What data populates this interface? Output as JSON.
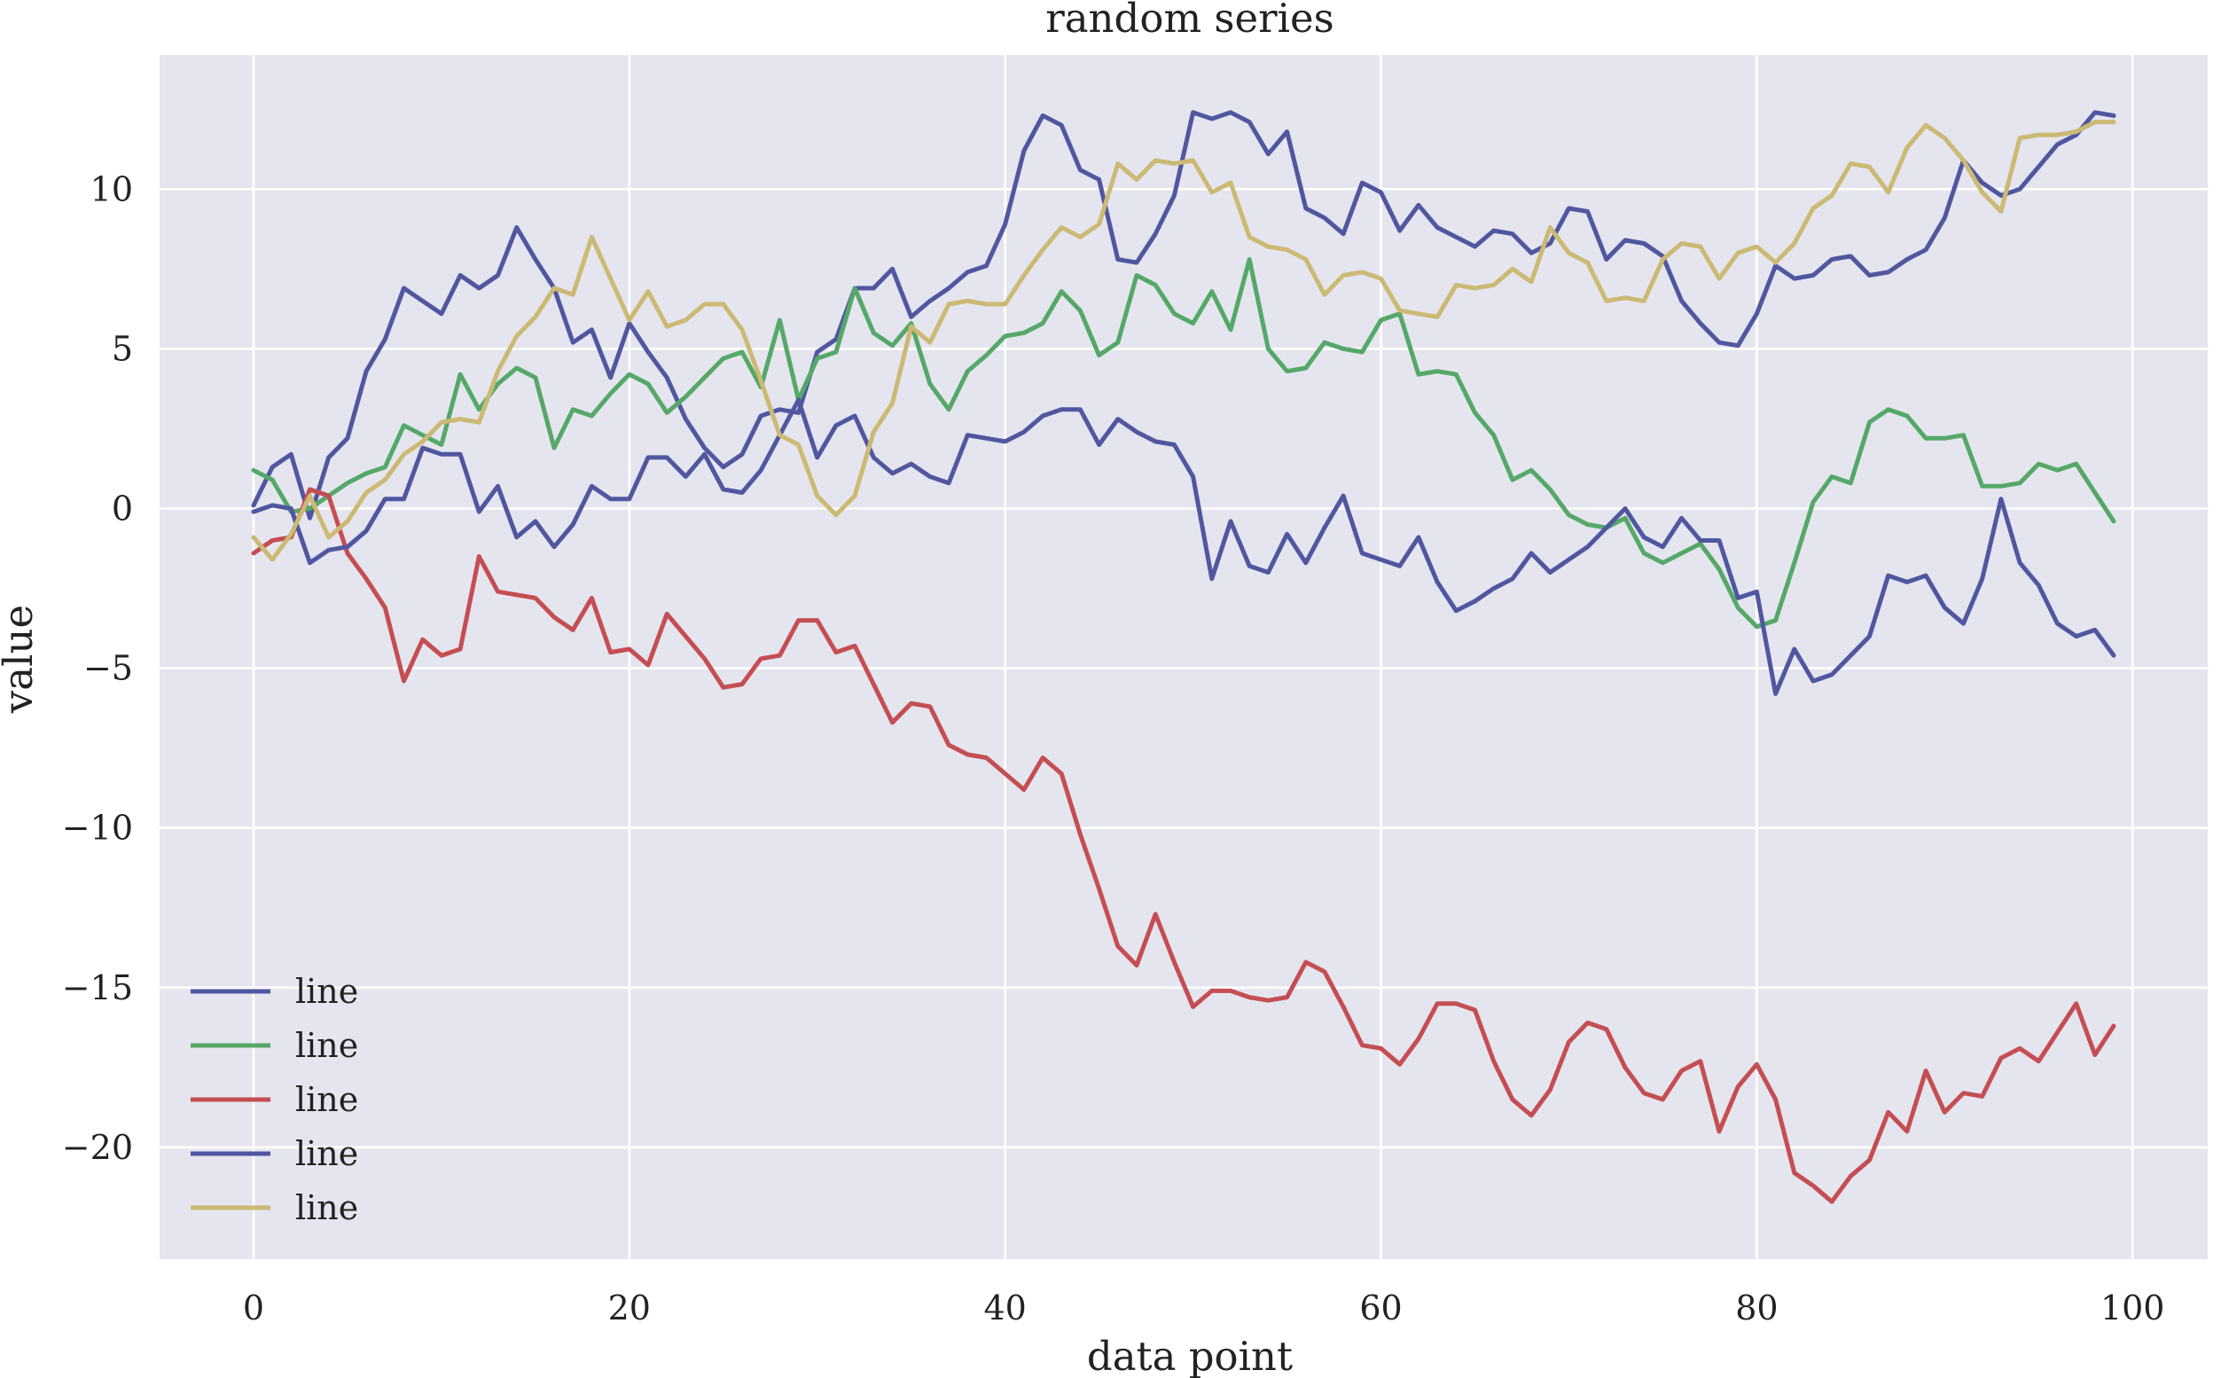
{
  "chart_data": {
    "type": "line",
    "title": "random series",
    "xlabel": "data point",
    "ylabel": "value",
    "xlim": [
      -5,
      104
    ],
    "ylim": [
      -23.5,
      14.2
    ],
    "xticks": [
      0,
      20,
      40,
      60,
      80,
      100
    ],
    "xtick_labels": [
      "0",
      "20",
      "40",
      "60",
      "80",
      "100"
    ],
    "yticks": [
      10,
      5,
      0,
      -5,
      -10,
      -15,
      -20
    ],
    "ytick_labels": [
      "10",
      "5",
      "0",
      "−5",
      "−10",
      "−15",
      "−20"
    ],
    "grid": true,
    "legend_position": "lower-left",
    "background": "#e5e5ef",
    "grid_color": "#ffffff",
    "series": [
      {
        "name": "line",
        "color": "#5057a0",
        "x": [
          0,
          1,
          2,
          3,
          4,
          5,
          6,
          7,
          8,
          9,
          10,
          11,
          12,
          13,
          14,
          15,
          16,
          17,
          18,
          19,
          20,
          21,
          22,
          23,
          24,
          25,
          26,
          27,
          28,
          29,
          30,
          31,
          32,
          33,
          34,
          35,
          36,
          37,
          38,
          39,
          40,
          41,
          42,
          43,
          44,
          45,
          46,
          47,
          48,
          49,
          50,
          51,
          52,
          53,
          54,
          55,
          56,
          57,
          58,
          59,
          60,
          61,
          62,
          63,
          64,
          65,
          66,
          67,
          68,
          69,
          70,
          71,
          72,
          73,
          74,
          75,
          76,
          77,
          78,
          79,
          80,
          81,
          82,
          83,
          84,
          85,
          86,
          87,
          88,
          89,
          90,
          91,
          92,
          93,
          94,
          95,
          96,
          97,
          98,
          99
        ],
        "values": [
          0.1,
          1.3,
          1.7,
          -0.3,
          1.6,
          2.2,
          4.3,
          5.3,
          6.9,
          6.5,
          6.1,
          7.3,
          6.9,
          7.3,
          8.8,
          7.8,
          6.9,
          5.2,
          5.6,
          4.1,
          5.8,
          4.9,
          4.1,
          2.8,
          1.9,
          1.3,
          1.7,
          2.9,
          3.1,
          3.0,
          4.9,
          5.3,
          6.9,
          6.9,
          7.5,
          6.0,
          6.5,
          6.9,
          7.4,
          7.6,
          8.9,
          11.2,
          12.3,
          12.0,
          10.6,
          10.3,
          7.8,
          7.7,
          8.6,
          9.8,
          12.4,
          12.2,
          12.4,
          12.1,
          11.1,
          11.8,
          9.4,
          9.1,
          8.6,
          10.2,
          9.9,
          8.7,
          9.5,
          8.8,
          8.5,
          8.2,
          8.7,
          8.6,
          8.0,
          8.3,
          9.4,
          9.3,
          7.8,
          8.4,
          8.3,
          7.9,
          6.5,
          5.8,
          5.2,
          5.1,
          6.1,
          7.6,
          7.2,
          7.3,
          7.8,
          7.9,
          7.3,
          7.4,
          7.8,
          8.1,
          9.1,
          10.9,
          10.2,
          9.8,
          10.0,
          10.7,
          11.4,
          11.7,
          12.4,
          12.3
        ]
      },
      {
        "name": "line",
        "color": "#55a868",
        "x": [
          0,
          1,
          2,
          3,
          4,
          5,
          6,
          7,
          8,
          9,
          10,
          11,
          12,
          13,
          14,
          15,
          16,
          17,
          18,
          19,
          20,
          21,
          22,
          23,
          24,
          25,
          26,
          27,
          28,
          29,
          30,
          31,
          32,
          33,
          34,
          35,
          36,
          37,
          38,
          39,
          40,
          41,
          42,
          43,
          44,
          45,
          46,
          47,
          48,
          49,
          50,
          51,
          52,
          53,
          54,
          55,
          56,
          57,
          58,
          59,
          60,
          61,
          62,
          63,
          64,
          65,
          66,
          67,
          68,
          69,
          70,
          71,
          72,
          73,
          74,
          75,
          76,
          77,
          78,
          79,
          80,
          81,
          82,
          83,
          84,
          85,
          86,
          87,
          88,
          89,
          90,
          91,
          92,
          93,
          94,
          95,
          96,
          97,
          98,
          99
        ],
        "values": [
          1.2,
          0.9,
          -0.1,
          0.0,
          0.4,
          0.8,
          1.1,
          1.3,
          2.6,
          2.3,
          2.0,
          4.2,
          3.1,
          3.9,
          4.4,
          4.1,
          1.9,
          3.1,
          2.9,
          3.6,
          4.2,
          3.9,
          3.0,
          3.5,
          4.1,
          4.7,
          4.9,
          3.8,
          5.9,
          3.4,
          4.7,
          4.9,
          6.9,
          5.5,
          5.1,
          5.8,
          3.9,
          3.1,
          4.3,
          4.8,
          5.4,
          5.5,
          5.8,
          6.8,
          6.2,
          4.8,
          5.2,
          7.3,
          7.0,
          6.1,
          5.8,
          6.8,
          5.6,
          7.8,
          5.0,
          4.3,
          4.4,
          5.2,
          5.0,
          4.9,
          5.9,
          6.1,
          4.2,
          4.3,
          4.2,
          3.0,
          2.3,
          0.9,
          1.2,
          0.6,
          -0.2,
          -0.5,
          -0.6,
          -0.3,
          -1.4,
          -1.7,
          -1.4,
          -1.1,
          -1.9,
          -3.1,
          -3.7,
          -3.5,
          -1.7,
          0.2,
          1.0,
          0.8,
          2.7,
          3.1,
          2.9,
          2.2,
          2.2,
          2.3,
          0.7,
          0.7,
          0.8,
          1.4,
          1.2,
          1.4,
          0.5,
          -0.4
        ]
      },
      {
        "name": "line",
        "color": "#c44e52",
        "x": [
          0,
          1,
          2,
          3,
          4,
          5,
          6,
          7,
          8,
          9,
          10,
          11,
          12,
          13,
          14,
          15,
          16,
          17,
          18,
          19,
          20,
          21,
          22,
          23,
          24,
          25,
          26,
          27,
          28,
          29,
          30,
          31,
          32,
          33,
          34,
          35,
          36,
          37,
          38,
          39,
          40,
          41,
          42,
          43,
          44,
          45,
          46,
          47,
          48,
          49,
          50,
          51,
          52,
          53,
          54,
          55,
          56,
          57,
          58,
          59,
          60,
          61,
          62,
          63,
          64,
          65,
          66,
          67,
          68,
          69,
          70,
          71,
          72,
          73,
          74,
          75,
          76,
          77,
          78,
          79,
          80,
          81,
          82,
          83,
          84,
          85,
          86,
          87,
          88,
          89,
          90,
          91,
          92,
          93,
          94,
          95,
          96,
          97,
          98,
          99
        ],
        "values": [
          -1.4,
          -1.0,
          -0.9,
          0.6,
          0.4,
          -1.4,
          -2.2,
          -3.1,
          -5.4,
          -4.1,
          -4.6,
          -4.4,
          -1.5,
          -2.6,
          -2.7,
          -2.8,
          -3.4,
          -3.8,
          -2.8,
          -4.5,
          -4.4,
          -4.9,
          -3.3,
          -4.0,
          -4.7,
          -5.6,
          -5.5,
          -4.7,
          -4.6,
          -3.5,
          -3.5,
          -4.5,
          -4.3,
          -5.5,
          -6.7,
          -6.1,
          -6.2,
          -7.4,
          -7.7,
          -7.8,
          -8.3,
          -8.8,
          -7.8,
          -8.3,
          -10.2,
          -11.9,
          -13.7,
          -14.3,
          -12.7,
          -14.2,
          -15.6,
          -15.1,
          -15.1,
          -15.3,
          -15.4,
          -15.3,
          -14.2,
          -14.5,
          -15.6,
          -16.8,
          -16.9,
          -17.4,
          -16.6,
          -15.5,
          -15.5,
          -15.7,
          -17.3,
          -18.5,
          -19.0,
          -18.2,
          -16.7,
          -16.1,
          -16.3,
          -17.5,
          -18.3,
          -18.5,
          -17.6,
          -17.3,
          -19.5,
          -18.1,
          -17.4,
          -18.5,
          -20.8,
          -21.2,
          -21.7,
          -20.9,
          -20.4,
          -18.9,
          -19.5,
          -17.6,
          -18.9,
          -18.3,
          -18.4,
          -17.2,
          -16.9,
          -17.3,
          -16.4,
          -15.5,
          -17.1,
          -16.2
        ]
      },
      {
        "name": "line",
        "color": "#5057a0",
        "x": [
          0,
          1,
          2,
          3,
          4,
          5,
          6,
          7,
          8,
          9,
          10,
          11,
          12,
          13,
          14,
          15,
          16,
          17,
          18,
          19,
          20,
          21,
          22,
          23,
          24,
          25,
          26,
          27,
          28,
          29,
          30,
          31,
          32,
          33,
          34,
          35,
          36,
          37,
          38,
          39,
          40,
          41,
          42,
          43,
          44,
          45,
          46,
          47,
          48,
          49,
          50,
          51,
          52,
          53,
          54,
          55,
          56,
          57,
          58,
          59,
          60,
          61,
          62,
          63,
          64,
          65,
          66,
          67,
          68,
          69,
          70,
          71,
          72,
          73,
          74,
          75,
          76,
          77,
          78,
          79,
          80,
          81,
          82,
          83,
          84,
          85,
          86,
          87,
          88,
          89,
          90,
          91,
          92,
          93,
          94,
          95,
          96,
          97,
          98,
          99
        ],
        "values": [
          -0.1,
          0.1,
          0.0,
          -1.7,
          -1.3,
          -1.2,
          -0.7,
          0.3,
          0.3,
          1.9,
          1.7,
          1.7,
          -0.1,
          0.7,
          -0.9,
          -0.4,
          -1.2,
          -0.5,
          0.7,
          0.3,
          0.3,
          1.6,
          1.6,
          1.0,
          1.7,
          0.6,
          0.5,
          1.2,
          2.3,
          3.4,
          1.6,
          2.6,
          2.9,
          1.6,
          1.1,
          1.4,
          1.0,
          0.8,
          2.3,
          2.2,
          2.1,
          2.4,
          2.9,
          3.1,
          3.1,
          2.0,
          2.8,
          2.4,
          2.1,
          2.0,
          1.0,
          -2.2,
          -0.4,
          -1.8,
          -2.0,
          -0.8,
          -1.7,
          -0.6,
          0.4,
          -1.4,
          -1.6,
          -1.8,
          -0.9,
          -2.3,
          -3.2,
          -2.9,
          -2.5,
          -2.2,
          -1.4,
          -2.0,
          -1.6,
          -1.2,
          -0.6,
          0.0,
          -0.9,
          -1.2,
          -0.3,
          -1.0,
          -1.0,
          -2.8,
          -2.6,
          -5.8,
          -4.4,
          -5.4,
          -5.2,
          -4.6,
          -4.0,
          -2.1,
          -2.3,
          -2.1,
          -3.1,
          -3.6,
          -2.2,
          0.3,
          -1.7,
          -2.4,
          -3.6,
          -4.0,
          -3.8,
          -4.6
        ]
      },
      {
        "name": "line",
        "color": "#ccb974",
        "x": [
          0,
          1,
          2,
          3,
          4,
          5,
          6,
          7,
          8,
          9,
          10,
          11,
          12,
          13,
          14,
          15,
          16,
          17,
          18,
          19,
          20,
          21,
          22,
          23,
          24,
          25,
          26,
          27,
          28,
          29,
          30,
          31,
          32,
          33,
          34,
          35,
          36,
          37,
          38,
          39,
          40,
          41,
          42,
          43,
          44,
          45,
          46,
          47,
          48,
          49,
          50,
          51,
          52,
          53,
          54,
          55,
          56,
          57,
          58,
          59,
          60,
          61,
          62,
          63,
          64,
          65,
          66,
          67,
          68,
          69,
          70,
          71,
          72,
          73,
          74,
          75,
          76,
          77,
          78,
          79,
          80,
          81,
          82,
          83,
          84,
          85,
          86,
          87,
          88,
          89,
          90,
          91,
          92,
          93,
          94,
          95,
          96,
          97,
          98,
          99
        ],
        "values": [
          -0.9,
          -1.6,
          -0.8,
          0.4,
          -0.9,
          -0.4,
          0.5,
          0.9,
          1.7,
          2.1,
          2.7,
          2.8,
          2.7,
          4.3,
          5.4,
          6.0,
          6.9,
          6.7,
          8.5,
          7.2,
          5.9,
          6.8,
          5.7,
          5.9,
          6.4,
          6.4,
          5.6,
          4.0,
          2.3,
          2.0,
          0.4,
          -0.2,
          0.4,
          2.4,
          3.3,
          5.7,
          5.2,
          6.4,
          6.5,
          6.4,
          6.4,
          7.3,
          8.1,
          8.8,
          8.5,
          8.9,
          10.8,
          10.3,
          10.9,
          10.8,
          10.9,
          9.9,
          10.2,
          8.5,
          8.2,
          8.1,
          7.8,
          6.7,
          7.3,
          7.4,
          7.2,
          6.2,
          6.1,
          6.0,
          7.0,
          6.9,
          7.0,
          7.5,
          7.1,
          8.8,
          8.0,
          7.7,
          6.5,
          6.6,
          6.5,
          7.8,
          8.3,
          8.2,
          7.2,
          8.0,
          8.2,
          7.7,
          8.3,
          9.4,
          9.8,
          10.8,
          10.7,
          9.9,
          11.3,
          12.0,
          11.6,
          10.9,
          9.9,
          9.3,
          11.6,
          11.7,
          11.7,
          11.8,
          12.1,
          12.1
        ]
      }
    ]
  }
}
